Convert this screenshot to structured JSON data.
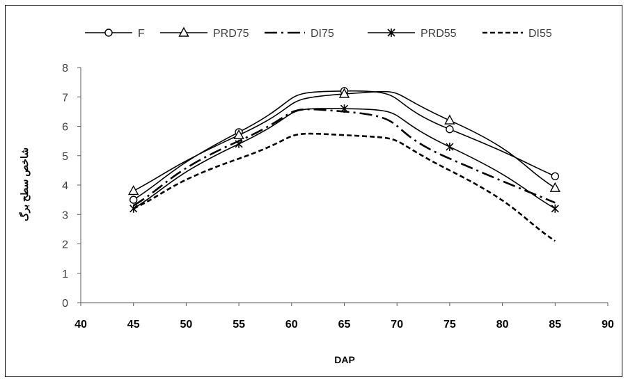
{
  "chart_data": {
    "type": "line",
    "title": "",
    "xlabel": "DAP",
    "ylabel": "شاخص سطح برگ",
    "xlim": [
      40,
      90
    ],
    "ylim": [
      0,
      8
    ],
    "x_ticks": [
      40,
      45,
      50,
      55,
      60,
      65,
      70,
      75,
      80,
      85,
      90
    ],
    "y_ticks": [
      0,
      1,
      2,
      3,
      4,
      5,
      6,
      7,
      8
    ],
    "grid": false,
    "legend_position": "top",
    "x": [
      45,
      55,
      65,
      75,
      85
    ],
    "series": [
      {
        "name": "F",
        "marker": "circle",
        "dash": "solid",
        "values": [
          3.5,
          5.8,
          7.2,
          5.9,
          4.3
        ]
      },
      {
        "name": "PRD75",
        "marker": "triangle",
        "dash": "solid",
        "values": [
          3.8,
          5.7,
          7.1,
          6.2,
          3.9
        ]
      },
      {
        "name": "DI75",
        "marker": "none",
        "dash": "dashdot",
        "values": [
          3.3,
          5.5,
          6.5,
          4.9,
          3.4
        ]
      },
      {
        "name": "PRD55",
        "marker": "star",
        "dash": "solid",
        "values": [
          3.2,
          5.4,
          6.6,
          5.3,
          3.2
        ]
      },
      {
        "name": "DI55",
        "marker": "none",
        "dash": "dash",
        "values": [
          3.2,
          4.9,
          5.7,
          4.5,
          2.1
        ]
      }
    ]
  }
}
